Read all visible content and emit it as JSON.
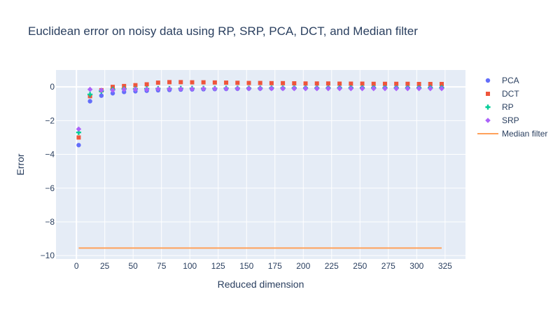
{
  "chart_data": {
    "type": "scatter",
    "title": "Euclidean error on noisy data using RP, SRP, PCA, DCT, and Median filter",
    "xlabel": "Reduced dimension",
    "ylabel": "Error",
    "xlim": [
      -18,
      343
    ],
    "ylim": [
      -10.2,
      1.0
    ],
    "xticks": [
      0,
      25,
      50,
      75,
      100,
      125,
      150,
      175,
      200,
      225,
      250,
      275,
      300,
      325
    ],
    "yticks": [
      0,
      -2,
      -4,
      -6,
      -8,
      -10
    ],
    "ytick_labels": [
      "0",
      "−2",
      "−4",
      "−6",
      "−8",
      "−10"
    ],
    "grid": true,
    "legend_position": "right",
    "colors": {
      "PCA": "#636efa",
      "DCT": "#ef553b",
      "RP": "#00cc96",
      "SRP": "#ab63fa",
      "Median filter": "#ffa15a",
      "plot_bg": "#e5ecf6",
      "grid": "#ffffff",
      "text": "#2a3f5f"
    },
    "x": [
      2,
      12,
      22,
      32,
      42,
      52,
      62,
      72,
      82,
      92,
      102,
      112,
      122,
      132,
      142,
      152,
      162,
      172,
      182,
      192,
      202,
      212,
      222,
      232,
      242,
      252,
      262,
      272,
      282,
      292,
      302,
      312,
      322
    ],
    "series": [
      {
        "name": "PCA",
        "marker": "circle",
        "values": [
          -3.45,
          -0.85,
          -0.52,
          -0.38,
          -0.3,
          -0.26,
          -0.23,
          -0.2,
          -0.18,
          -0.16,
          -0.15,
          -0.14,
          -0.13,
          -0.12,
          -0.11,
          -0.1,
          -0.1,
          -0.09,
          -0.09,
          -0.08,
          -0.08,
          -0.08,
          -0.07,
          -0.07,
          -0.07,
          -0.07,
          -0.06,
          -0.06,
          -0.06,
          -0.06,
          -0.06,
          -0.05,
          -0.05
        ]
      },
      {
        "name": "DCT",
        "marker": "square",
        "values": [
          -3.0,
          -0.55,
          -0.2,
          0.0,
          0.05,
          0.1,
          0.15,
          0.25,
          0.28,
          0.28,
          0.27,
          0.27,
          0.26,
          0.25,
          0.24,
          0.23,
          0.23,
          0.22,
          0.22,
          0.21,
          0.2,
          0.2,
          0.2,
          0.19,
          0.19,
          0.19,
          0.18,
          0.18,
          0.18,
          0.18,
          0.17,
          0.17,
          0.17
        ]
      },
      {
        "name": "RP",
        "marker": "cross",
        "values": [
          -2.7,
          -0.45,
          -0.25,
          -0.15,
          -0.12,
          -0.12,
          -0.11,
          -0.1,
          -0.1,
          -0.09,
          -0.09,
          -0.09,
          -0.09,
          -0.08,
          -0.08,
          -0.08,
          -0.08,
          -0.07,
          -0.07,
          -0.07,
          -0.07,
          -0.07,
          -0.07,
          -0.06,
          -0.06,
          -0.06,
          -0.06,
          -0.06,
          -0.06,
          -0.06,
          -0.06,
          -0.05,
          -0.05
        ]
      },
      {
        "name": "SRP",
        "marker": "diamond",
        "values": [
          -2.5,
          -0.15,
          -0.2,
          -0.2,
          -0.15,
          -0.15,
          -0.15,
          -0.12,
          -0.12,
          -0.12,
          -0.12,
          -0.11,
          -0.11,
          -0.11,
          -0.1,
          -0.1,
          -0.1,
          -0.1,
          -0.1,
          -0.1,
          -0.1,
          -0.1,
          -0.1,
          -0.1,
          -0.1,
          -0.1,
          -0.1,
          -0.1,
          -0.1,
          -0.1,
          -0.1,
          -0.1,
          -0.1
        ]
      },
      {
        "name": "Median filter",
        "marker": "line",
        "x": [
          2,
          322
        ],
        "values": [
          -9.55,
          -9.55
        ]
      }
    ]
  }
}
